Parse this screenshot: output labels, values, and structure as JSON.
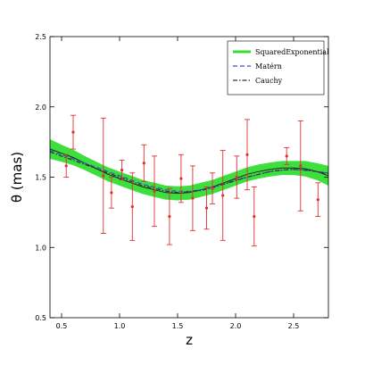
{
  "chart_data": {
    "type": "line",
    "title": "",
    "xlabel": "z",
    "ylabel": "θ (mas)",
    "xlim": [
      0.4,
      2.8
    ],
    "ylim": [
      0.5,
      2.5
    ],
    "xticks": [
      0.5,
      1.0,
      1.5,
      2.0,
      2.5
    ],
    "yticks": [
      0.5,
      1.0,
      1.5,
      2.0,
      2.5
    ],
    "xtick_labels": [
      "0.5",
      "1.0",
      "1.5",
      "2.0",
      "2.5"
    ],
    "ytick_labels": [
      "0.5",
      "1.0",
      "1.5",
      "2.0",
      "2.5"
    ],
    "grid": false,
    "legend_position": "top-right",
    "series": [
      {
        "name": "SquaredExponential",
        "color": "#33dd33",
        "style": "solid band",
        "x": [
          0.4,
          0.5,
          0.6,
          0.7,
          0.8,
          0.9,
          1.0,
          1.1,
          1.2,
          1.3,
          1.4,
          1.5,
          1.6,
          1.7,
          1.8,
          1.9,
          2.0,
          2.1,
          2.2,
          2.3,
          2.4,
          2.5,
          2.6,
          2.7,
          2.8
        ],
        "y": [
          1.7,
          1.67,
          1.64,
          1.6,
          1.56,
          1.52,
          1.49,
          1.46,
          1.43,
          1.41,
          1.39,
          1.385,
          1.39,
          1.41,
          1.43,
          1.46,
          1.49,
          1.52,
          1.54,
          1.555,
          1.565,
          1.565,
          1.56,
          1.54,
          1.51
        ],
        "band_halfwidth": [
          0.07,
          0.06,
          0.055,
          0.05,
          0.05,
          0.05,
          0.05,
          0.05,
          0.05,
          0.05,
          0.05,
          0.05,
          0.05,
          0.05,
          0.05,
          0.05,
          0.05,
          0.05,
          0.05,
          0.05,
          0.05,
          0.05,
          0.055,
          0.06,
          0.07
        ]
      },
      {
        "name": "Matérn",
        "color": "#3355cc",
        "style": "dashed",
        "x": [
          0.4,
          0.5,
          0.6,
          0.7,
          0.8,
          0.9,
          1.0,
          1.1,
          1.2,
          1.3,
          1.4,
          1.5,
          1.6,
          1.7,
          1.8,
          1.9,
          2.0,
          2.1,
          2.2,
          2.3,
          2.4,
          2.5,
          2.6,
          2.7,
          2.8
        ],
        "y": [
          1.69,
          1.66,
          1.63,
          1.6,
          1.57,
          1.54,
          1.51,
          1.48,
          1.45,
          1.43,
          1.41,
          1.4,
          1.4,
          1.41,
          1.43,
          1.45,
          1.48,
          1.5,
          1.52,
          1.54,
          1.55,
          1.555,
          1.55,
          1.54,
          1.53
        ]
      },
      {
        "name": "Cauchy",
        "color": "#333333",
        "style": "dashdot",
        "x": [
          0.4,
          0.5,
          0.6,
          0.7,
          0.8,
          0.9,
          1.0,
          1.1,
          1.2,
          1.3,
          1.4,
          1.5,
          1.6,
          1.7,
          1.8,
          1.9,
          2.0,
          2.1,
          2.2,
          2.3,
          2.4,
          2.5,
          2.6,
          2.7,
          2.8
        ],
        "y": [
          1.68,
          1.65,
          1.62,
          1.59,
          1.56,
          1.53,
          1.5,
          1.47,
          1.44,
          1.42,
          1.4,
          1.39,
          1.395,
          1.405,
          1.425,
          1.45,
          1.475,
          1.5,
          1.52,
          1.54,
          1.55,
          1.555,
          1.55,
          1.54,
          1.525
        ]
      }
    ],
    "observations": {
      "color": "#e03030",
      "points": [
        {
          "x": 0.54,
          "y": 1.58,
          "err": 0.08
        },
        {
          "x": 0.6,
          "y": 1.82,
          "err": 0.12
        },
        {
          "x": 0.86,
          "y": 1.51,
          "err": 0.41
        },
        {
          "x": 0.93,
          "y": 1.39,
          "err": 0.11
        },
        {
          "x": 1.02,
          "y": 1.55,
          "err": 0.07
        },
        {
          "x": 1.11,
          "y": 1.29,
          "err": 0.24
        },
        {
          "x": 1.21,
          "y": 1.6,
          "err": 0.13
        },
        {
          "x": 1.3,
          "y": 1.4,
          "err": 0.25
        },
        {
          "x": 1.43,
          "y": 1.22,
          "err": 0.2
        },
        {
          "x": 1.53,
          "y": 1.49,
          "err": 0.17
        },
        {
          "x": 1.63,
          "y": 1.35,
          "err": 0.23
        },
        {
          "x": 1.75,
          "y": 1.28,
          "err": 0.15
        },
        {
          "x": 1.8,
          "y": 1.42,
          "err": 0.11
        },
        {
          "x": 1.89,
          "y": 1.37,
          "err": 0.32
        },
        {
          "x": 2.01,
          "y": 1.5,
          "err": 0.15
        },
        {
          "x": 2.1,
          "y": 1.66,
          "err": 0.25
        },
        {
          "x": 2.16,
          "y": 1.22,
          "err": 0.21
        },
        {
          "x": 2.44,
          "y": 1.65,
          "err": 0.06
        },
        {
          "x": 2.56,
          "y": 1.58,
          "err": 0.32
        },
        {
          "x": 2.71,
          "y": 1.34,
          "err": 0.12
        }
      ]
    }
  }
}
